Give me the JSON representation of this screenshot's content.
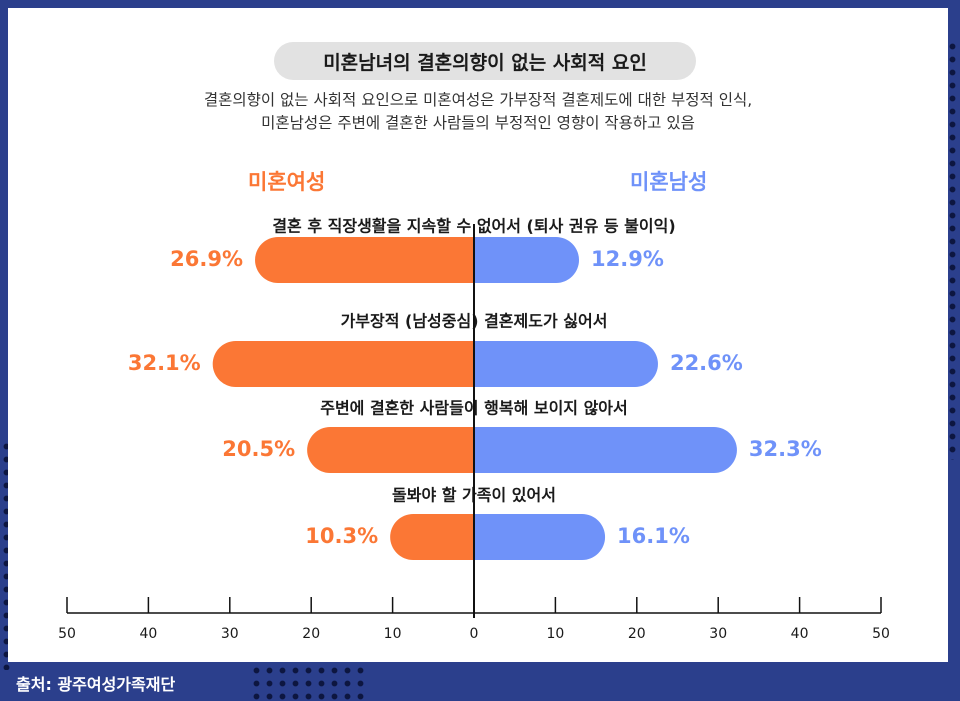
{
  "header": {
    "title": "미혼남녀의 결혼의향이 없는 사회적 요인",
    "subtitle_line1": "결혼의향이 없는 사회적 요인으로 미혼여성은 가부장적 결혼제도에 대한 부정적 인식,",
    "subtitle_line2": "미혼남성은 주변에 결혼한 사람들의 부정적인 영향이 작용하고 있음"
  },
  "legend": {
    "female": "미혼여성",
    "male": "미혼남성"
  },
  "source": "출처: 광주여성가족재단",
  "colors": {
    "female": "#fb7735",
    "male": "#6f92f9",
    "axis": "#111111",
    "background": "#2b3f8c"
  },
  "chart_data": {
    "type": "bar",
    "orientation": "diverging-horizontal",
    "categories": [
      "결혼 후 직장생활을 지속할 수 없어서 (퇴사 권유 등 불이익)",
      "가부장적 (남성중심) 결혼제도가 싫어서",
      "주변에 결혼한 사람들이 행복해 보이지 않아서",
      "돌봐야 할 가족이 있어서"
    ],
    "series": [
      {
        "name": "미혼여성",
        "values": [
          26.9,
          32.1,
          20.5,
          10.3
        ],
        "labels": [
          "26.9%",
          "32.1%",
          "20.5%",
          "10.3%"
        ]
      },
      {
        "name": "미혼남성",
        "values": [
          12.9,
          22.6,
          32.3,
          16.1
        ],
        "labels": [
          "12.9%",
          "22.6%",
          "32.3%",
          "16.1%"
        ]
      }
    ],
    "xlim": [
      -50,
      50
    ],
    "tick_labels": [
      "50",
      "40",
      "30",
      "20",
      "10",
      "0",
      "10",
      "20",
      "30",
      "40",
      "50"
    ],
    "grid": false,
    "legend_position": "top"
  }
}
